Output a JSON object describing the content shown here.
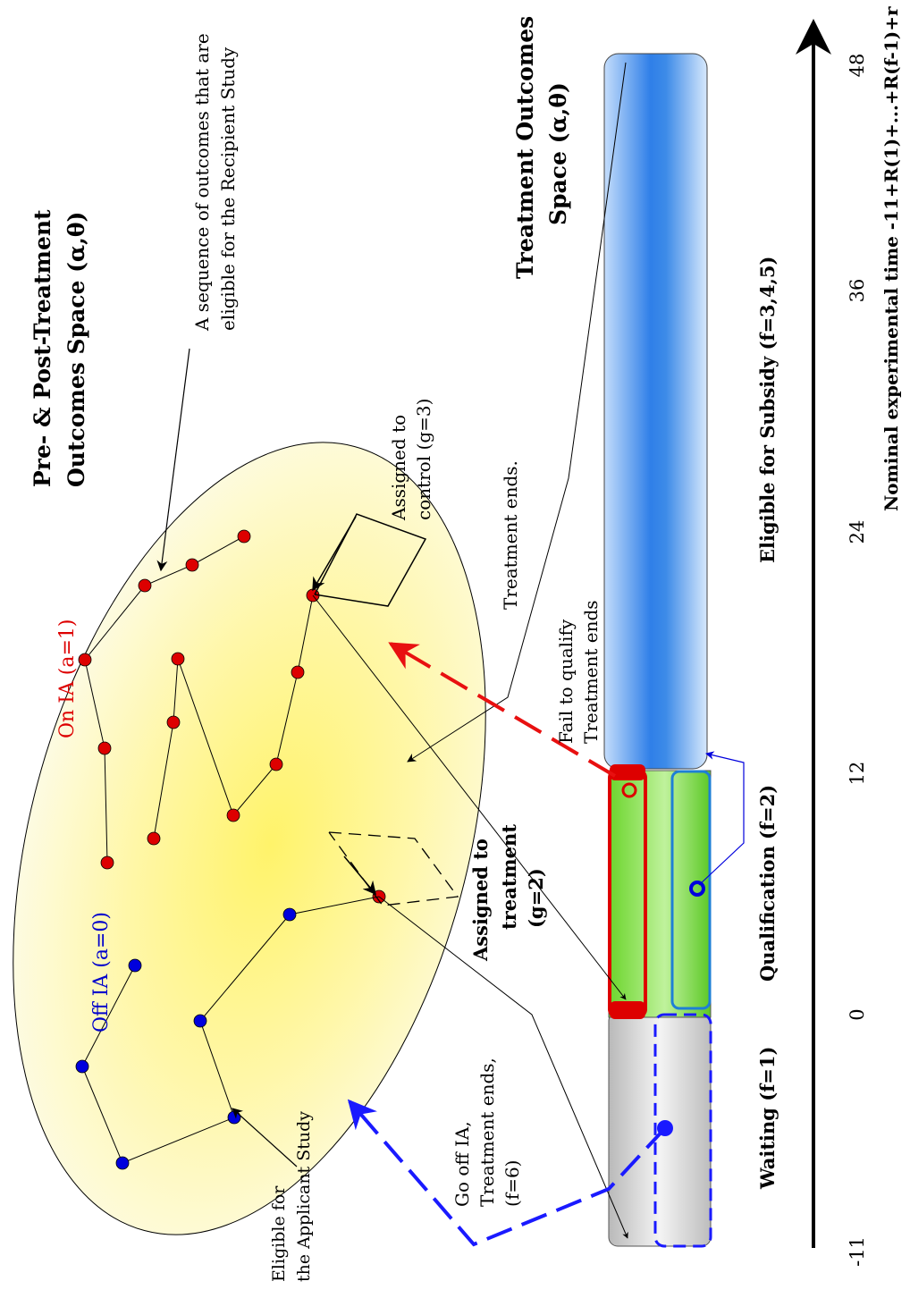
{
  "labels": {
    "pre_post_title_1": "Pre- & Post-Treatment",
    "pre_post_title_2": "Outcomes Space (α,θ)",
    "treatment_title_1": "Treatment Outcomes",
    "treatment_title_2": "Space (α,θ)",
    "sequence_note_1": "A sequence of outcomes that are",
    "sequence_note_2": "eligible for the Recipient Study",
    "on_ia": "On IA (a=1)",
    "off_ia": "Off IA (a=0)",
    "assigned_control_1": "Assigned to",
    "assigned_control_2": "control (g=3)",
    "assigned_treatment_1": "Assigned to",
    "assigned_treatment_2": "treatment",
    "assigned_treatment_3": "(g=2)",
    "treatment_ends": "Treatment ends.",
    "fail_qualify_1": "Fail to qualify",
    "fail_qualify_2": "Treatment ends",
    "go_off_1": "Go off IA,",
    "go_off_2": "Treatment ends,",
    "go_off_3": "(f=6)",
    "eligible_applicant_1": "Eligible for",
    "eligible_applicant_2": "the Applicant Study",
    "phase_waiting": "Waiting (f=1)",
    "phase_qualification": "Qualification (f=2)",
    "phase_subsidy": "Eligible for Subsidy (f=3,4,5)",
    "axis_title": "Nominal experimental time -11+R(1)+...+R(f-1)+r"
  },
  "axis_ticks": [
    "-11",
    "0",
    "12",
    "24",
    "36",
    "48"
  ],
  "colors": {
    "on_ia": "#dd0000",
    "off_ia": "#0000cc",
    "ellipse_center": "#fff36a",
    "ellipse_edge": "#fdfbe2",
    "waiting_bar": "#d9d9d9",
    "qualification_bar": "#8fe05a",
    "subsidy_bar": "#3d8be8",
    "dashed_red": "#e81010",
    "dashed_blue": "#1a1aff"
  }
}
